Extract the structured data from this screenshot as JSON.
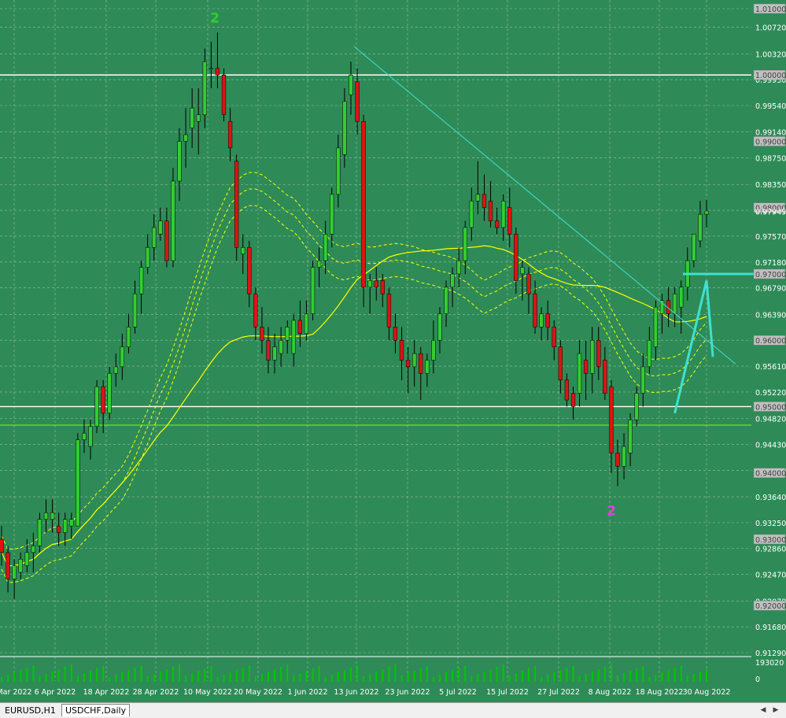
{
  "colors": {
    "background": "#2e8b57",
    "bull_candle": "#32cd32",
    "bear_candle": "#dc1414",
    "ma": "#ffff00",
    "trendline": "#40e0d0",
    "volume": "#00c800",
    "grid": "#c8c8c8"
  },
  "chart_data": {
    "type": "candlestick",
    "symbol": "USDCHF",
    "timeframe": "Daily",
    "y_ticks": [
      "1.01000",
      "1.00720",
      "1.00320",
      "0.99930",
      "0.99540",
      "0.99140",
      "0.98750",
      "0.98350",
      "0.97960",
      "0.97570",
      "0.97180",
      "0.96790",
      "0.96390",
      "0.96000",
      "0.95610",
      "0.95220",
      "0.94820",
      "0.94430",
      "0.94040",
      "0.93640",
      "0.93250",
      "0.92860",
      "0.92470",
      "0.92070",
      "0.91680",
      "0.91290"
    ],
    "highlighted_levels": [
      "1.01000",
      "1.00000",
      "0.99000",
      "0.98000",
      "0.97000",
      "0.96000",
      "0.95000",
      "0.94000",
      "0.93000",
      "0.92000"
    ],
    "price_label": "0.97945",
    "volume_ticks": [
      "193020",
      "0"
    ],
    "x_ticks": [
      "Mar 2022",
      "6 Apr 2022",
      "18 Apr 2022",
      "28 Apr 2022",
      "10 May 2022",
      "20 May 2022",
      "1 Jun 2022",
      "13 Jun 2022",
      "23 Jun 2022",
      "5 Jul 2022",
      "15 Jul 2022",
      "27 Jul 2022",
      "8 Aug 2022",
      "18 Aug 2022",
      "30 Aug 2022"
    ],
    "annotations": [
      {
        "text": "2",
        "color": "#32cd32",
        "price": 1.0079
      },
      {
        "text": "2",
        "color": "#e040e0",
        "price": 0.9336
      }
    ],
    "horizontal_lines": [
      1.0,
      0.95,
      0.9472
    ],
    "candles": [
      [
        0.93,
        0.932,
        0.926,
        0.928
      ],
      [
        0.928,
        0.929,
        0.922,
        0.924
      ],
      [
        0.924,
        0.927,
        0.921,
        0.926
      ],
      [
        0.925,
        0.928,
        0.924,
        0.927
      ],
      [
        0.926,
        0.93,
        0.925,
        0.928
      ],
      [
        0.928,
        0.931,
        0.925,
        0.929
      ],
      [
        0.929,
        0.934,
        0.928,
        0.933
      ],
      [
        0.933,
        0.936,
        0.931,
        0.934
      ],
      [
        0.933,
        0.936,
        0.931,
        0.934
      ],
      [
        0.932,
        0.934,
        0.929,
        0.931
      ],
      [
        0.931,
        0.934,
        0.929,
        0.933
      ],
      [
        0.932,
        0.934,
        0.93,
        0.933
      ],
      [
        0.932,
        0.946,
        0.932,
        0.945
      ],
      [
        0.945,
        0.948,
        0.943,
        0.946
      ],
      [
        0.944,
        0.948,
        0.942,
        0.947
      ],
      [
        0.947,
        0.954,
        0.946,
        0.953
      ],
      [
        0.953,
        0.954,
        0.946,
        0.949
      ],
      [
        0.949,
        0.956,
        0.948,
        0.955
      ],
      [
        0.955,
        0.958,
        0.953,
        0.956
      ],
      [
        0.956,
        0.961,
        0.954,
        0.959
      ],
      [
        0.959,
        0.964,
        0.958,
        0.962
      ],
      [
        0.962,
        0.969,
        0.961,
        0.967
      ],
      [
        0.967,
        0.972,
        0.964,
        0.971
      ],
      [
        0.971,
        0.976,
        0.97,
        0.974
      ],
      [
        0.974,
        0.979,
        0.972,
        0.977
      ],
      [
        0.976,
        0.98,
        0.975,
        0.978
      ],
      [
        0.978,
        0.98,
        0.971,
        0.972
      ],
      [
        0.972,
        0.986,
        0.971,
        0.984
      ],
      [
        0.984,
        0.992,
        0.981,
        0.99
      ],
      [
        0.99,
        0.995,
        0.986,
        0.991
      ],
      [
        0.992,
        0.998,
        0.989,
        0.995
      ],
      [
        0.993,
        0.998,
        0.988,
        0.994
      ],
      [
        0.994,
        1.004,
        0.992,
        1.002
      ],
      [
        1.001,
        1.005,
        0.998,
        1.001
      ],
      [
        1.001,
        1.0064,
        0.998,
        1.0
      ],
      [
        1.0,
        1.001,
        0.993,
        0.994
      ],
      [
        0.993,
        0.995,
        0.987,
        0.989
      ],
      [
        0.987,
        0.988,
        0.972,
        0.974
      ],
      [
        0.973,
        0.976,
        0.97,
        0.974
      ],
      [
        0.974,
        0.975,
        0.965,
        0.967
      ],
      [
        0.967,
        0.968,
        0.96,
        0.962
      ],
      [
        0.962,
        0.965,
        0.958,
        0.96
      ],
      [
        0.96,
        0.962,
        0.955,
        0.957
      ],
      [
        0.957,
        0.961,
        0.955,
        0.959
      ],
      [
        0.958,
        0.962,
        0.956,
        0.96
      ],
      [
        0.96,
        0.963,
        0.958,
        0.962
      ],
      [
        0.958,
        0.964,
        0.956,
        0.963
      ],
      [
        0.963,
        0.966,
        0.959,
        0.961
      ],
      [
        0.961,
        0.966,
        0.96,
        0.964
      ],
      [
        0.964,
        0.972,
        0.963,
        0.971
      ],
      [
        0.971,
        0.974,
        0.968,
        0.972
      ],
      [
        0.972,
        0.978,
        0.97,
        0.976
      ],
      [
        0.976,
        0.983,
        0.974,
        0.982
      ],
      [
        0.982,
        0.991,
        0.98,
        0.989
      ],
      [
        0.988,
        0.998,
        0.986,
        0.996
      ],
      [
        0.997,
        1.002,
        0.994,
        1.0
      ],
      [
        0.999,
        1.001,
        0.991,
        0.993
      ],
      [
        0.993,
        0.994,
        0.965,
        0.968
      ],
      [
        0.968,
        0.97,
        0.964,
        0.969
      ],
      [
        0.969,
        0.971,
        0.966,
        0.968
      ],
      [
        0.969,
        0.97,
        0.965,
        0.967
      ],
      [
        0.967,
        0.968,
        0.96,
        0.962
      ],
      [
        0.962,
        0.964,
        0.958,
        0.96
      ],
      [
        0.96,
        0.962,
        0.954,
        0.957
      ],
      [
        0.957,
        0.959,
        0.952,
        0.956
      ],
      [
        0.956,
        0.96,
        0.953,
        0.958
      ],
      [
        0.958,
        0.959,
        0.951,
        0.955
      ],
      [
        0.955,
        0.958,
        0.953,
        0.957
      ],
      [
        0.957,
        0.963,
        0.955,
        0.96
      ],
      [
        0.96,
        0.965,
        0.958,
        0.964
      ],
      [
        0.964,
        0.969,
        0.962,
        0.968
      ],
      [
        0.968,
        0.971,
        0.965,
        0.97
      ],
      [
        0.97,
        0.974,
        0.968,
        0.972
      ],
      [
        0.972,
        0.978,
        0.97,
        0.977
      ],
      [
        0.977,
        0.983,
        0.975,
        0.981
      ],
      [
        0.981,
        0.987,
        0.979,
        0.982
      ],
      [
        0.982,
        0.985,
        0.978,
        0.98
      ],
      [
        0.981,
        0.984,
        0.977,
        0.978
      ],
      [
        0.978,
        0.98,
        0.976,
        0.977
      ],
      [
        0.977,
        0.982,
        0.975,
        0.981
      ],
      [
        0.98,
        0.983,
        0.974,
        0.976
      ],
      [
        0.976,
        0.977,
        0.967,
        0.969
      ],
      [
        0.97,
        0.972,
        0.966,
        0.971
      ],
      [
        0.97,
        0.971,
        0.964,
        0.967
      ],
      [
        0.967,
        0.969,
        0.961,
        0.962
      ],
      [
        0.962,
        0.965,
        0.96,
        0.964
      ],
      [
        0.964,
        0.966,
        0.96,
        0.962
      ],
      [
        0.962,
        0.963,
        0.957,
        0.959
      ],
      [
        0.959,
        0.96,
        0.952,
        0.954
      ],
      [
        0.954,
        0.955,
        0.95,
        0.951
      ],
      [
        0.952,
        0.953,
        0.948,
        0.95
      ],
      [
        0.952,
        0.96,
        0.95,
        0.958
      ],
      [
        0.957,
        0.96,
        0.951,
        0.955
      ],
      [
        0.955,
        0.962,
        0.952,
        0.96
      ],
      [
        0.96,
        0.962,
        0.954,
        0.956
      ],
      [
        0.957,
        0.959,
        0.951,
        0.952
      ],
      [
        0.953,
        0.954,
        0.94,
        0.943
      ],
      [
        0.943,
        0.945,
        0.938,
        0.941
      ],
      [
        0.941,
        0.946,
        0.939,
        0.944
      ],
      [
        0.943,
        0.949,
        0.941,
        0.948
      ],
      [
        0.948,
        0.953,
        0.947,
        0.952
      ],
      [
        0.952,
        0.958,
        0.95,
        0.956
      ],
      [
        0.956,
        0.962,
        0.955,
        0.96
      ],
      [
        0.959,
        0.966,
        0.957,
        0.965
      ],
      [
        0.964,
        0.967,
        0.961,
        0.966
      ],
      [
        0.966,
        0.968,
        0.962,
        0.964
      ],
      [
        0.964,
        0.968,
        0.962,
        0.967
      ],
      [
        0.965,
        0.969,
        0.961,
        0.968
      ],
      [
        0.968,
        0.974,
        0.966,
        0.972
      ],
      [
        0.972,
        0.976,
        0.971,
        0.976
      ],
      [
        0.975,
        0.981,
        0.974,
        0.979
      ],
      [
        0.979,
        0.9812,
        0.977,
        0.9795
      ]
    ]
  },
  "tabs": [
    {
      "label": "EURUSD,H1",
      "active": false
    },
    {
      "label": "USDCHF,Daily",
      "active": true
    }
  ]
}
